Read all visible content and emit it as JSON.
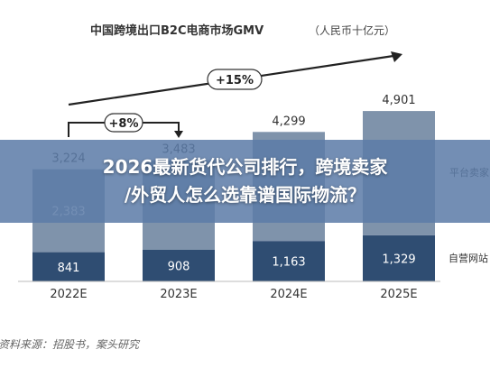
{
  "chart_data": {
    "type": "bar",
    "stacked": true,
    "title": "中国跨境出口B2C电商市场GMV",
    "unit": "（人民币十亿元）",
    "categories": [
      "2022E",
      "2023E",
      "2024E",
      "2025E"
    ],
    "series": [
      {
        "name": "自营网站",
        "values": [
          841,
          908,
          1163,
          1329
        ],
        "labels": [
          "841",
          "908",
          "1,163",
          "1,329"
        ]
      },
      {
        "name": "平台卖家",
        "values": [
          2383,
          2575,
          3136,
          3572
        ],
        "labels": [
          "2,383",
          "",
          "",
          ""
        ]
      }
    ],
    "totals": [
      3224,
      3483,
      4299,
      4901
    ],
    "total_labels": [
      "3,224",
      "3,483",
      "4,299",
      "4,901"
    ],
    "growth_annotations": [
      {
        "label": "+8%",
        "from": "2022E",
        "to": "2023E"
      },
      {
        "label": "+15%",
        "from": "2022E",
        "to": "2025E"
      }
    ],
    "ylim": [
      0,
      5500
    ],
    "grid": false,
    "legend": "right",
    "colors": {
      "self_operated": "#2f4d72",
      "platform": "#7f93ab",
      "totals_bar": "#8497b0",
      "text": "#333333"
    },
    "source": "资料来源：招股书，案头研究"
  },
  "banner": {
    "line1": "2026最新货代公司排行，跨境卖家",
    "line2": "/外贸人怎么选靠谱国际物流？"
  }
}
